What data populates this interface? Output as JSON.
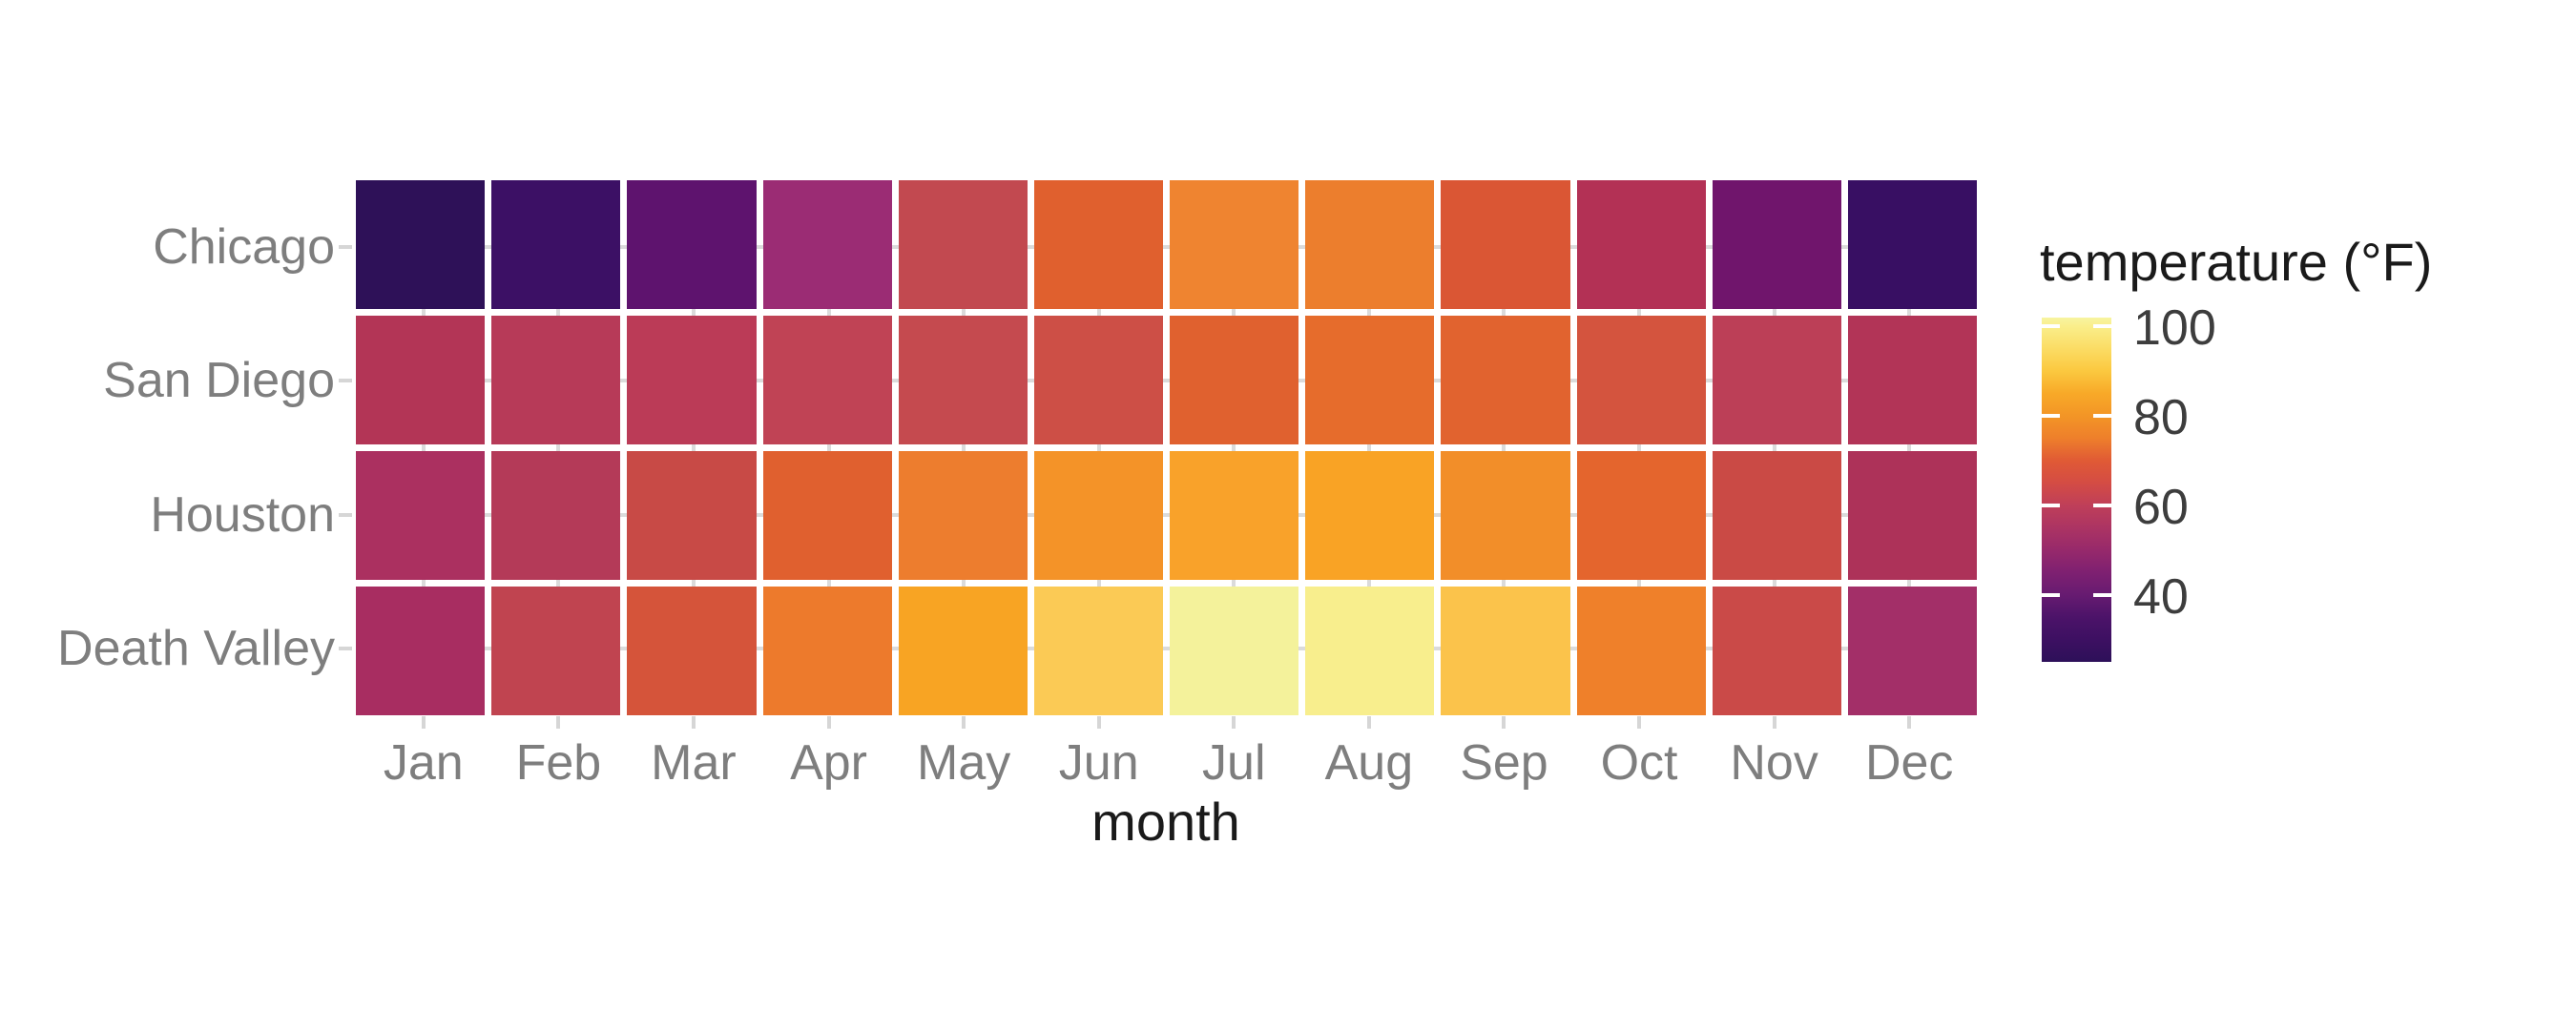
{
  "chart_data": {
    "type": "heatmap",
    "title": "",
    "xlabel": "month",
    "ylabel": "",
    "legend_title": "temperature (°F)",
    "legend_position": "right",
    "x_categories": [
      "Jan",
      "Feb",
      "Mar",
      "Apr",
      "May",
      "Jun",
      "Jul",
      "Aug",
      "Sep",
      "Oct",
      "Nov",
      "Dec"
    ],
    "y_categories": [
      "Chicago",
      "San Diego",
      "Houston",
      "Death Valley"
    ],
    "values": [
      [
        25,
        31,
        39,
        50,
        61,
        71,
        77,
        75,
        68,
        56,
        43,
        29
      ],
      [
        58,
        59,
        61,
        63,
        65,
        67,
        70,
        72,
        71,
        68,
        62,
        57
      ],
      [
        54,
        58,
        64,
        70,
        77,
        82,
        84,
        85,
        80,
        72,
        63,
        56
      ],
      [
        54,
        61,
        69,
        77,
        87,
        94,
        102,
        101,
        92,
        78,
        64,
        53
      ]
    ],
    "value_unit": "°F",
    "colorbar_ticks": [
      100,
      80,
      60,
      40
    ],
    "colorbar_domain": [
      25,
      102
    ],
    "grid": "white gaps between tiles; light grey major gridlines visible through gaps"
  },
  "style": {
    "cell_colors": [
      [
        "#2E1158",
        "#3C1065",
        "#5E136E",
        "#9B2C74",
        "#C24950",
        "#E0602E",
        "#EF8430",
        "#EC7E2D",
        "#DA5634",
        "#B33155",
        "#70156C",
        "#380F63"
      ],
      [
        "#B33556",
        "#B73A58",
        "#BB3B57",
        "#C04355",
        "#C54A4F",
        "#CD4F46",
        "#E0612F",
        "#E66C2C",
        "#E1632F",
        "#D4543E",
        "#BC3F57",
        "#B23457"
      ],
      [
        "#AB3060",
        "#B43A58",
        "#C84A46",
        "#E0602F",
        "#ED7D2E",
        "#F49328",
        "#F9A22A",
        "#F9A325",
        "#F28E29",
        "#E4652D",
        "#CA4A45",
        "#AD3259"
      ],
      [
        "#A82D61",
        "#C04450",
        "#D5543A",
        "#ED7A2C",
        "#F8A423",
        "#FBCA55",
        "#F4F29B",
        "#F8EE8D",
        "#FBC34B",
        "#EF802A",
        "#CA4A48",
        "#A32F68"
      ]
    ],
    "gradient_stops": [
      {
        "v": 102,
        "c": "#F7F4A0"
      },
      {
        "v": 100,
        "c": "#FAEE8A"
      },
      {
        "v": 95,
        "c": "#FBDC64"
      },
      {
        "v": 90,
        "c": "#FBC83F"
      },
      {
        "v": 85,
        "c": "#F8A928"
      },
      {
        "v": 80,
        "c": "#F39526"
      },
      {
        "v": 75,
        "c": "#EE7F2B"
      },
      {
        "v": 70,
        "c": "#E05A35"
      },
      {
        "v": 65,
        "c": "#D44C44"
      },
      {
        "v": 60,
        "c": "#BF3F59"
      },
      {
        "v": 55,
        "c": "#AC3463"
      },
      {
        "v": 50,
        "c": "#97296B"
      },
      {
        "v": 45,
        "c": "#7E2071"
      },
      {
        "v": 40,
        "c": "#671B71"
      },
      {
        "v": 35,
        "c": "#4C1369"
      },
      {
        "v": 30,
        "c": "#3D1062"
      },
      {
        "v": 25,
        "c": "#2D1059"
      }
    ],
    "colors": {
      "background": "#FFFFFF",
      "axis_text": "#7E7E7E",
      "axis_title": "#1A1A1A",
      "legend_title": "#1A1A1A",
      "legend_label": "#3D3D3D",
      "axis_tick": "#D6D6D6",
      "gridline": "#DBDBDB",
      "tile_gap": "#FFFFFF",
      "colorbar_tick": "#FFFFFF"
    }
  }
}
